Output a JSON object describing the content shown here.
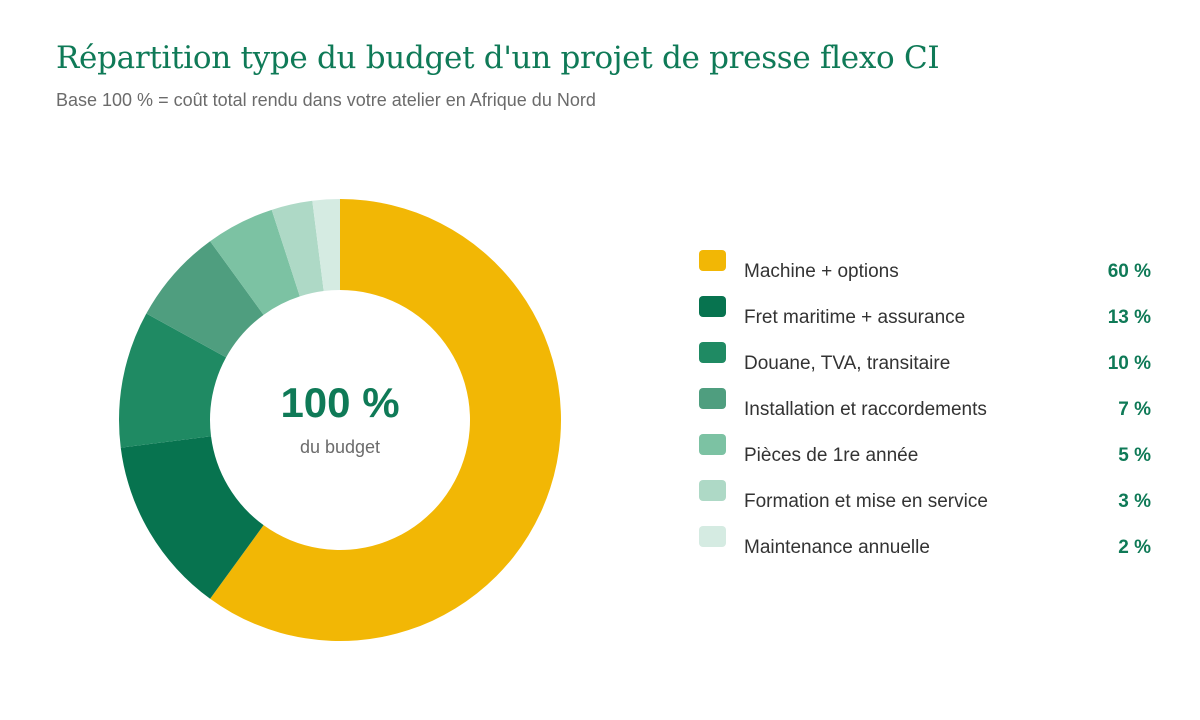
{
  "title": "Répartition type du budget d'un projet de presse flexo CI",
  "subtitle": "Base 100 % = coût total rendu dans votre atelier en Afrique du Nord",
  "center": {
    "value": "100 %",
    "caption": "du budget"
  },
  "chart_data": {
    "type": "pie",
    "style": "donut",
    "title": "Répartition type du budget d'un projet de presse flexo CI",
    "subtitle": "Base 100 % = coût total rendu dans votre atelier en Afrique du Nord",
    "unit": "%",
    "legend_position": "right",
    "slices": [
      {
        "label": "Machine + options",
        "value": 60,
        "display": "60 %",
        "color": "#f2b705"
      },
      {
        "label": "Fret maritime + assurance",
        "value": 13,
        "display": "13 %",
        "color": "#07734f"
      },
      {
        "label": "Douane, TVA, transitaire",
        "value": 10,
        "display": "10 %",
        "color": "#1f8a63"
      },
      {
        "label": "Installation et raccordements",
        "value": 7,
        "display": "7 %",
        "color": "#4f9e7f"
      },
      {
        "label": "Pièces de 1re année",
        "value": 5,
        "display": "5 %",
        "color": "#7cc2a3"
      },
      {
        "label": "Formation et mise en service",
        "value": 3,
        "display": "3 %",
        "color": "#aed9c6"
      },
      {
        "label": "Maintenance annuelle",
        "value": 2,
        "display": "2 %",
        "color": "#d5ebe2"
      }
    ]
  }
}
